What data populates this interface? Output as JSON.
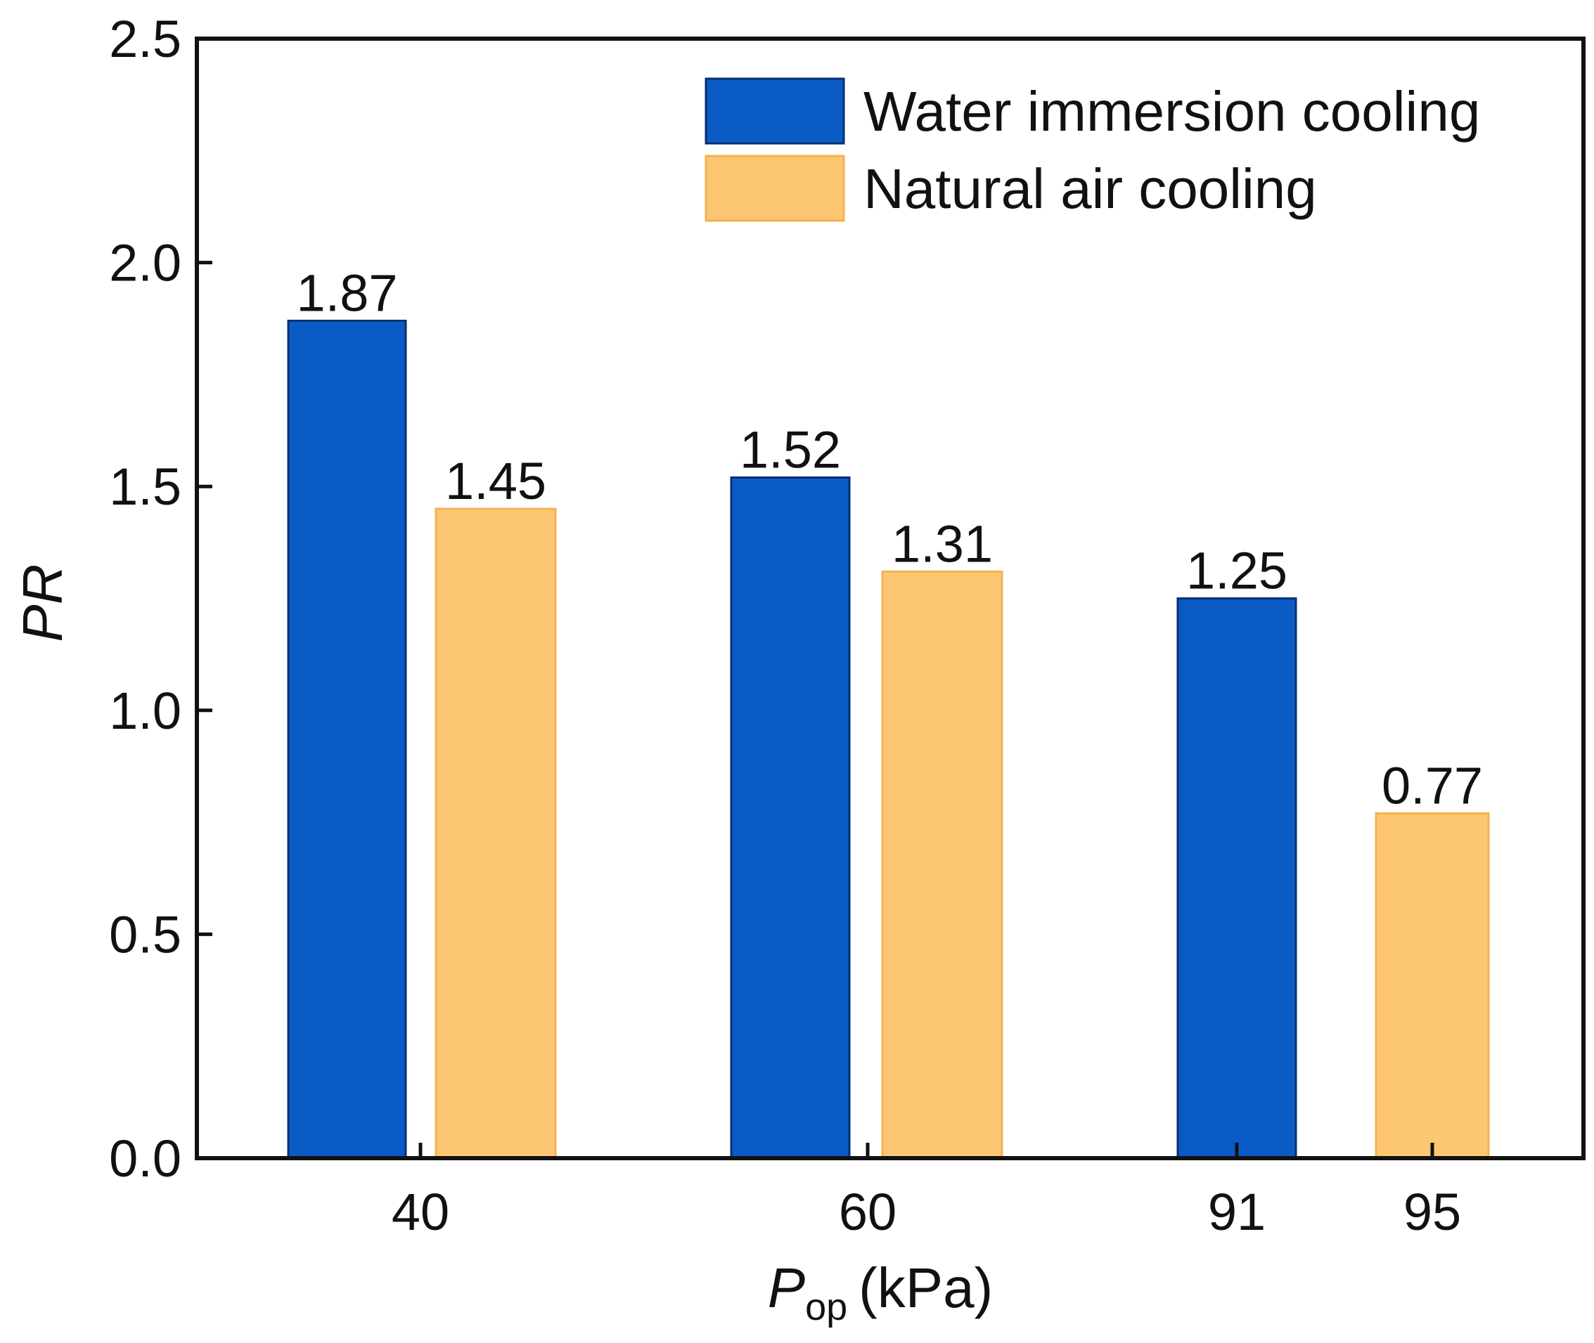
{
  "chart_data": {
    "type": "bar",
    "xlabel": "P",
    "xlabel_subscript": "op",
    "xlabel_unit": "(kPa)",
    "ylabel": "PR",
    "ylim": [
      0,
      2.5
    ],
    "yticks": [
      "0.0",
      "0.5",
      "1.0",
      "1.5",
      "2.0",
      "2.5"
    ],
    "legend_position": "top-right",
    "series": [
      {
        "name": "Water immersion cooling",
        "color": "#0B5BC6",
        "points": [
          {
            "x": "40",
            "value": 1.87,
            "label": "1.87"
          },
          {
            "x": "60",
            "value": 1.52,
            "label": "1.52"
          },
          {
            "x": "91",
            "value": 1.25,
            "label": "1.25"
          }
        ]
      },
      {
        "name": "Natural air cooling",
        "color": "#FDC672",
        "points": [
          {
            "x": "40",
            "value": 1.45,
            "label": "1.45"
          },
          {
            "x": "60",
            "value": 1.31,
            "label": "1.31"
          },
          {
            "x": "95",
            "value": 0.77,
            "label": "0.77"
          }
        ]
      }
    ],
    "xticks": [
      "40",
      "60",
      "91",
      "95"
    ]
  }
}
